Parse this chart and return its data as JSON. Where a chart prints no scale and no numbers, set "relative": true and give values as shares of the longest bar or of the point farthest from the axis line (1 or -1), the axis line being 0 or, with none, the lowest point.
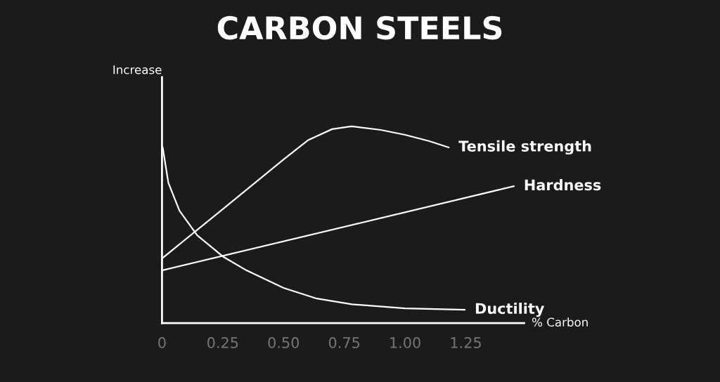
{
  "chart_data": {
    "type": "line",
    "title": "CARBON STEELS",
    "xlabel": "% Carbon",
    "ylabel": "Increase",
    "relative": true,
    "xlim": [
      0,
      1.49
    ],
    "xticks": [
      0,
      0.25,
      {
        "value": 0.5,
        "label": "0.50"
      },
      0.75,
      {
        "value": 1.0,
        "label": "1.00"
      },
      1.25
    ],
    "grid": false,
    "legend": false,
    "marker": "none",
    "line_style": "solid",
    "series": [
      {
        "name": "Tensile strength",
        "color": "#ffffff",
        "x": [
          0,
          0.25,
          0.5,
          0.6,
          0.7,
          0.78,
          0.9,
          1.0,
          1.1,
          1.18
        ],
        "values": [
          0.329,
          0.579,
          0.832,
          0.929,
          0.986,
          1.0,
          0.982,
          0.957,
          0.925,
          0.893
        ]
      },
      {
        "name": "Hardness",
        "color": "#ffffff",
        "x": [
          0,
          1.448
        ],
        "values": [
          0.268,
          0.696
        ]
      },
      {
        "name": "Ductility",
        "color": "#ffffff",
        "x": [
          0.003,
          0.026,
          0.072,
          0.145,
          0.25,
          0.348,
          0.5,
          0.637,
          0.782,
          1.0,
          1.246
        ],
        "values": [
          0.893,
          0.714,
          0.571,
          0.446,
          0.339,
          0.268,
          0.179,
          0.125,
          0.096,
          0.075,
          0.068
        ]
      }
    ]
  }
}
